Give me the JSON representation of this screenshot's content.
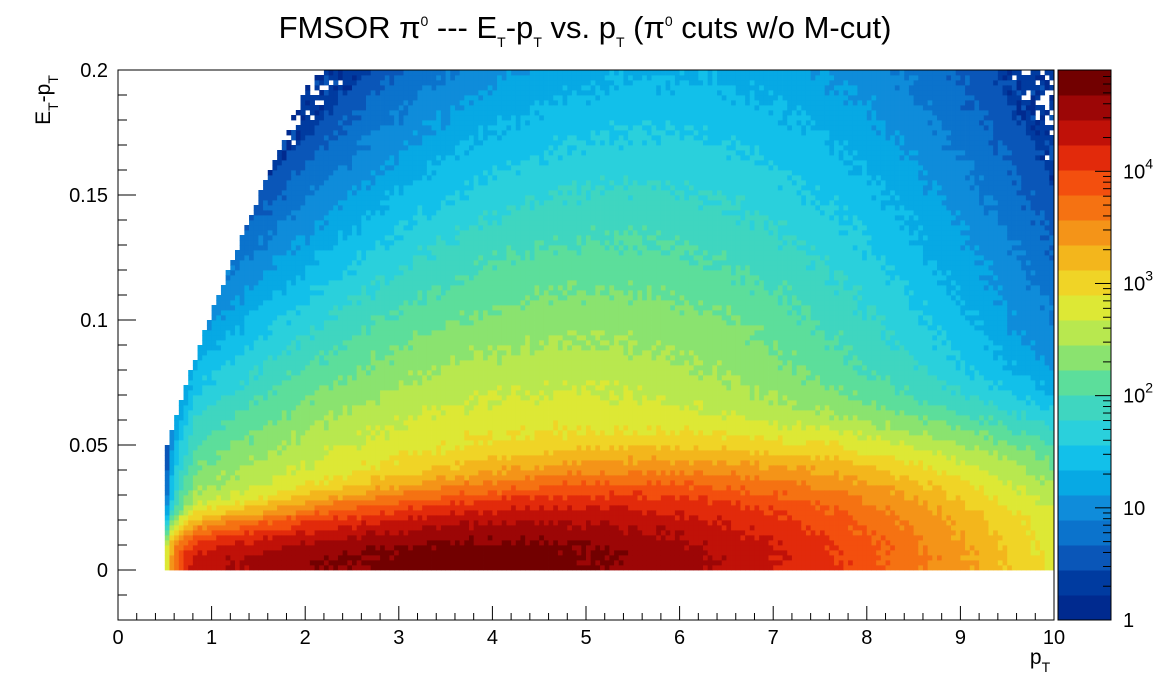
{
  "chart_data": {
    "type": "heatmap",
    "title": {
      "prefix": "FMSOR π",
      "sup1": "0",
      "mid1": " --- E",
      "sub1": "T",
      "mid2": "-p",
      "sub2": "T",
      "mid3": " vs. p",
      "sub3": "T",
      "mid4": " (π",
      "sup2": "0",
      "suffix": " cuts w/o M-cut)"
    },
    "xlabel": {
      "base": "p",
      "sub": "T"
    },
    "ylabel": {
      "base1": "E",
      "sub1": "T",
      "mid": "-p",
      "sub2": "T"
    },
    "xlim": [
      0,
      10
    ],
    "ylim": [
      -0.02,
      0.2
    ],
    "x_ticks": [
      "0",
      "1",
      "2",
      "3",
      "4",
      "5",
      "6",
      "7",
      "8",
      "9",
      "10"
    ],
    "y_ticks": [
      {
        "value": 0,
        "label": "0"
      },
      {
        "value": 0.05,
        "label": "0.05"
      },
      {
        "value": 0.1,
        "label": "0.1"
      },
      {
        "value": 0.15,
        "label": "0.15"
      },
      {
        "value": 0.2,
        "label": "0.2"
      }
    ],
    "z_scale": "log",
    "zlim": [
      1,
      80000
    ],
    "z_ticks": [
      {
        "value": 1,
        "base": "1",
        "exp": ""
      },
      {
        "value": 10,
        "base": "10",
        "exp": ""
      },
      {
        "value": 100,
        "base": "10",
        "exp": "2"
      },
      {
        "value": 1000,
        "base": "10",
        "exp": "3"
      },
      {
        "value": 10000,
        "base": "10",
        "exp": "4"
      }
    ],
    "colormap": [
      "#002a8f",
      "#003ba0",
      "#0a56b8",
      "#0b73cc",
      "#0f8cda",
      "#07a9e4",
      "#12c0ea",
      "#2ad0dc",
      "#3fd6c0",
      "#5cde9b",
      "#8ae36f",
      "#b8e84f",
      "#dde835",
      "#f0d426",
      "#f3b61c",
      "#f49418",
      "#f57212",
      "#f34f0e",
      "#e22a0b",
      "#c01108",
      "#9c0606",
      "#720000"
    ],
    "bins_x": 200,
    "bins_y": 110,
    "peak_counts": 60000,
    "peak_location": {
      "pt": 3.8,
      "dE": 0.002
    },
    "grid": false,
    "legend": "none"
  }
}
